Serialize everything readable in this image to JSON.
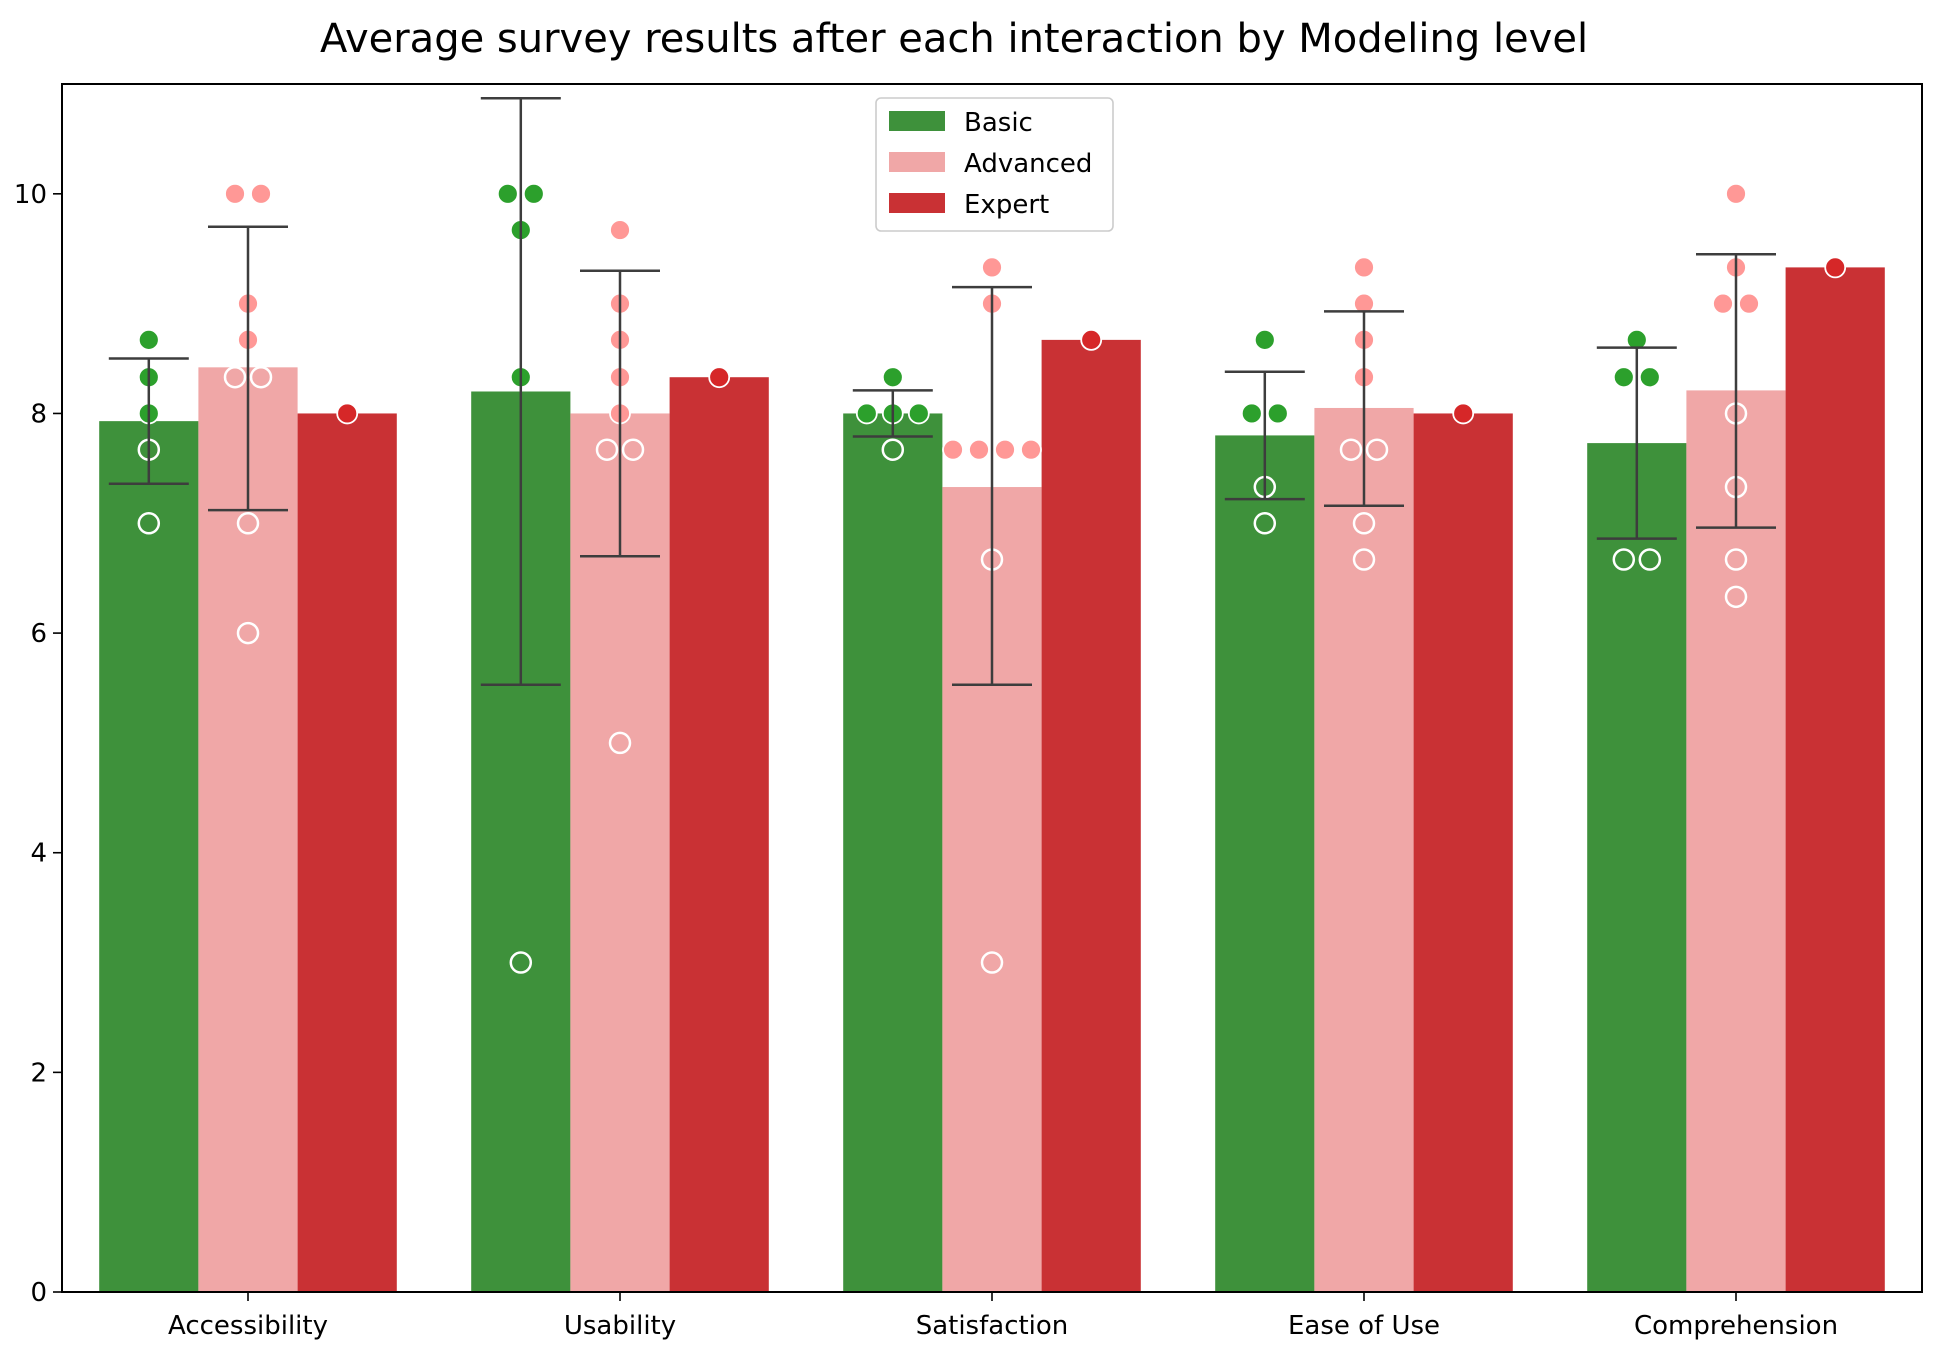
{
  "chart_data": {
    "type": "bar",
    "title": "Average survey results after each interaction by Modeling level",
    "xlabel": "",
    "ylabel": "",
    "ylim": [
      0,
      11
    ],
    "yticks": [
      0,
      2,
      4,
      6,
      8,
      10
    ],
    "categories": [
      "Accessibility",
      "Usability",
      "Satisfaction",
      "Ease of Use",
      "Comprehension"
    ],
    "legend": {
      "position": "upper center"
    },
    "series": [
      {
        "name": "Basic",
        "color": "#3e913b",
        "point_color": "#2ca02c",
        "values": [
          7.93,
          8.2,
          8.0,
          7.8,
          7.73
        ],
        "error": [
          [
            7.36,
            8.5
          ],
          [
            5.53,
            10.87
          ],
          [
            7.79,
            8.21
          ],
          [
            7.22,
            8.38
          ],
          [
            6.86,
            8.6
          ]
        ],
        "points": [
          [
            8.67,
            8.33,
            8.0,
            7.67,
            7.0
          ],
          [
            10.0,
            10.0,
            9.67,
            8.33,
            3.0
          ],
          [
            8.33,
            8.0,
            8.0,
            8.0,
            7.67
          ],
          [
            8.67,
            8.0,
            8.0,
            7.33,
            7.0
          ],
          [
            8.67,
            8.33,
            8.33,
            6.67,
            6.67
          ]
        ]
      },
      {
        "name": "Advanced",
        "color": "#f0a7a7",
        "point_color": "#ff9896",
        "values": [
          8.42,
          8.0,
          7.33,
          8.05,
          8.21
        ],
        "error": [
          [
            7.12,
            9.7
          ],
          [
            6.7,
            9.3
          ],
          [
            5.53,
            9.15
          ],
          [
            7.16,
            8.93
          ],
          [
            6.96,
            9.45
          ]
        ],
        "points": [
          [
            10.0,
            10.0,
            9.0,
            8.67,
            8.33,
            8.33,
            7.0,
            6.0
          ],
          [
            9.67,
            9.0,
            8.67,
            8.33,
            8.0,
            7.67,
            7.67,
            5.0
          ],
          [
            9.33,
            9.0,
            7.67,
            7.67,
            7.67,
            7.67,
            6.67,
            3.0
          ],
          [
            9.33,
            9.0,
            8.67,
            8.33,
            7.67,
            7.67,
            7.0,
            6.67
          ],
          [
            10.0,
            9.33,
            9.0,
            9.0,
            8.0,
            7.33,
            6.67,
            6.33
          ]
        ]
      },
      {
        "name": "Expert",
        "color": "#c93134",
        "point_color": "#d62728",
        "values": [
          8.0,
          8.33,
          8.67,
          8.0,
          9.33
        ],
        "error": null,
        "points": [
          [
            8.0
          ],
          [
            8.33
          ],
          [
            8.67
          ],
          [
            8.0
          ],
          [
            9.33
          ]
        ]
      }
    ]
  }
}
